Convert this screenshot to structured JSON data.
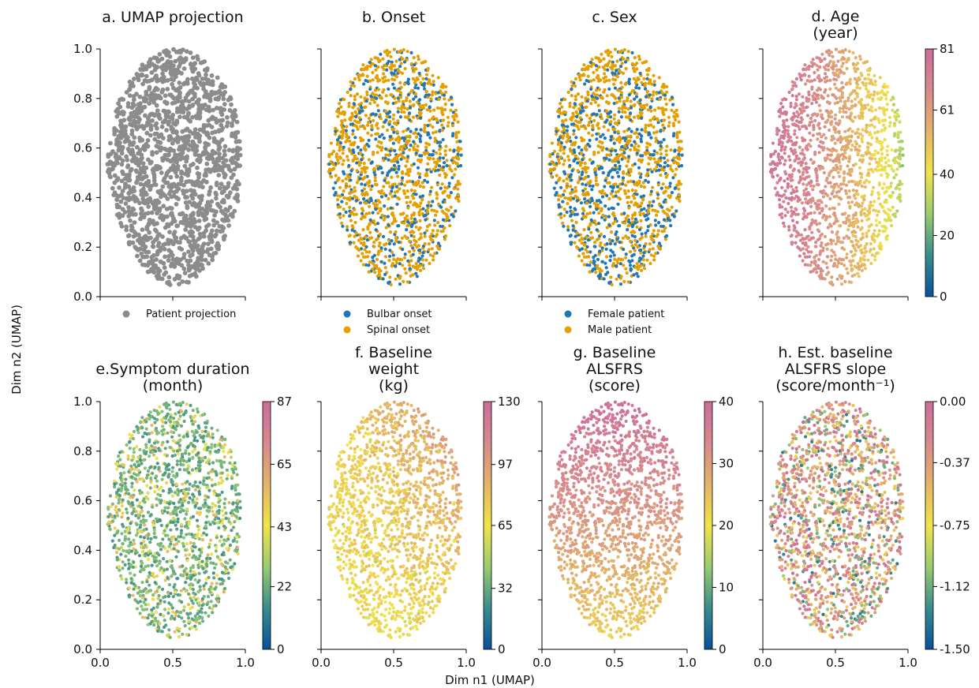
{
  "figure": {
    "xlabel": "Dim n1 (UMAP)",
    "ylabel": "Dim n2 (UMAP)"
  },
  "colors": {
    "patient": "#8c8c8c",
    "bulbar": "#1f77b4",
    "spinal": "#e69f00",
    "female": "#1f77b4",
    "male": "#e69f00",
    "colormap": [
      "#08519c",
      "#3a8c8e",
      "#9acc70",
      "#f2e44a",
      "#e3b468",
      "#d88a8e",
      "#cc6c9c"
    ]
  },
  "chart_data": [
    {
      "id": "a",
      "type": "scatter",
      "title": "a. UMAP projection",
      "xlim": [
        0,
        1
      ],
      "ylim": [
        0,
        1
      ],
      "x_ticks": [],
      "y_ticks": [
        "0.0",
        "0.2",
        "0.4",
        "0.6",
        "0.8",
        "1.0"
      ],
      "color_mode": "single",
      "legend": [
        {
          "label": "Patient projection",
          "color": "#8c8c8c"
        }
      ],
      "legend_placement": "below"
    },
    {
      "id": "b",
      "type": "scatter",
      "title": "b. Onset",
      "xlim": [
        0,
        1
      ],
      "ylim": [
        0,
        1
      ],
      "x_ticks": [],
      "y_ticks": [],
      "color_mode": "binary",
      "minority_fraction": 0.3,
      "legend": [
        {
          "label": "Bulbar onset",
          "color": "#1f77b4"
        },
        {
          "label": "Spinal onset",
          "color": "#e69f00"
        }
      ],
      "legend_placement": "below"
    },
    {
      "id": "c",
      "type": "scatter",
      "title": "c. Sex",
      "xlim": [
        0,
        1
      ],
      "ylim": [
        0,
        1
      ],
      "x_ticks": [],
      "y_ticks": [],
      "color_mode": "binary",
      "minority_fraction": 0.38,
      "legend": [
        {
          "label": "Female patient",
          "color": "#1f77b4"
        },
        {
          "label": "Male patient",
          "color": "#e69f00"
        }
      ],
      "legend_placement": "below"
    },
    {
      "id": "d",
      "type": "scatter",
      "title_lines": [
        "d. Age",
        "(year)"
      ],
      "xlim": [
        0,
        1
      ],
      "ylim": [
        0,
        1
      ],
      "x_ticks": [],
      "y_ticks": [],
      "color_mode": "continuous",
      "colorbar": {
        "min": 0,
        "max": 81,
        "ticks": [
          "0",
          "20",
          "40",
          "61",
          "81"
        ]
      },
      "gradient": "age"
    },
    {
      "id": "e",
      "type": "scatter",
      "title_lines": [
        "e.Symptom duration",
        "(month)"
      ],
      "xlim": [
        0,
        1
      ],
      "ylim": [
        0,
        1
      ],
      "x_ticks": [
        "0.0",
        "0.5",
        "1.0"
      ],
      "y_ticks": [
        "0.0",
        "0.2",
        "0.4",
        "0.6",
        "0.8",
        "1.0"
      ],
      "color_mode": "continuous",
      "colorbar": {
        "min": 0,
        "max": 87,
        "ticks": [
          "0",
          "22",
          "43",
          "65",
          "87"
        ]
      },
      "gradient": "duration"
    },
    {
      "id": "f",
      "type": "scatter",
      "title_lines": [
        "f. Baseline",
        "weight",
        "(kg)"
      ],
      "xlim": [
        0,
        1
      ],
      "ylim": [
        0,
        1
      ],
      "x_ticks": [
        "0.0",
        "0.5",
        "1.0"
      ],
      "y_ticks": [],
      "color_mode": "continuous",
      "colorbar": {
        "min": 0,
        "max": 130,
        "ticks": [
          "0",
          "32",
          "65",
          "97",
          "130"
        ]
      },
      "gradient": "weight"
    },
    {
      "id": "g",
      "type": "scatter",
      "title_lines": [
        "g. Baseline",
        "ALSFRS",
        "(score)"
      ],
      "xlim": [
        0,
        1
      ],
      "ylim": [
        0,
        1
      ],
      "x_ticks": [
        "0.0",
        "0.5",
        "1.0"
      ],
      "y_ticks": [],
      "color_mode": "continuous",
      "colorbar": {
        "min": 0,
        "max": 40,
        "ticks": [
          "0",
          "10",
          "20",
          "30",
          "40"
        ]
      },
      "gradient": "alsfrs"
    },
    {
      "id": "h",
      "type": "scatter",
      "title_lines": [
        "h. Est. baseline",
        "ALSFRS slope",
        "(score/month⁻¹)"
      ],
      "xlim": [
        0,
        1
      ],
      "ylim": [
        0,
        1
      ],
      "x_ticks": [
        "0.0",
        "0.5",
        "1.0"
      ],
      "y_ticks": [],
      "color_mode": "continuous",
      "colorbar": {
        "min": -1.5,
        "max": 0,
        "ticks": [
          "-1.50",
          "-1.12",
          "-0.75",
          "-0.37",
          "0.00"
        ]
      },
      "gradient": "slope"
    }
  ]
}
